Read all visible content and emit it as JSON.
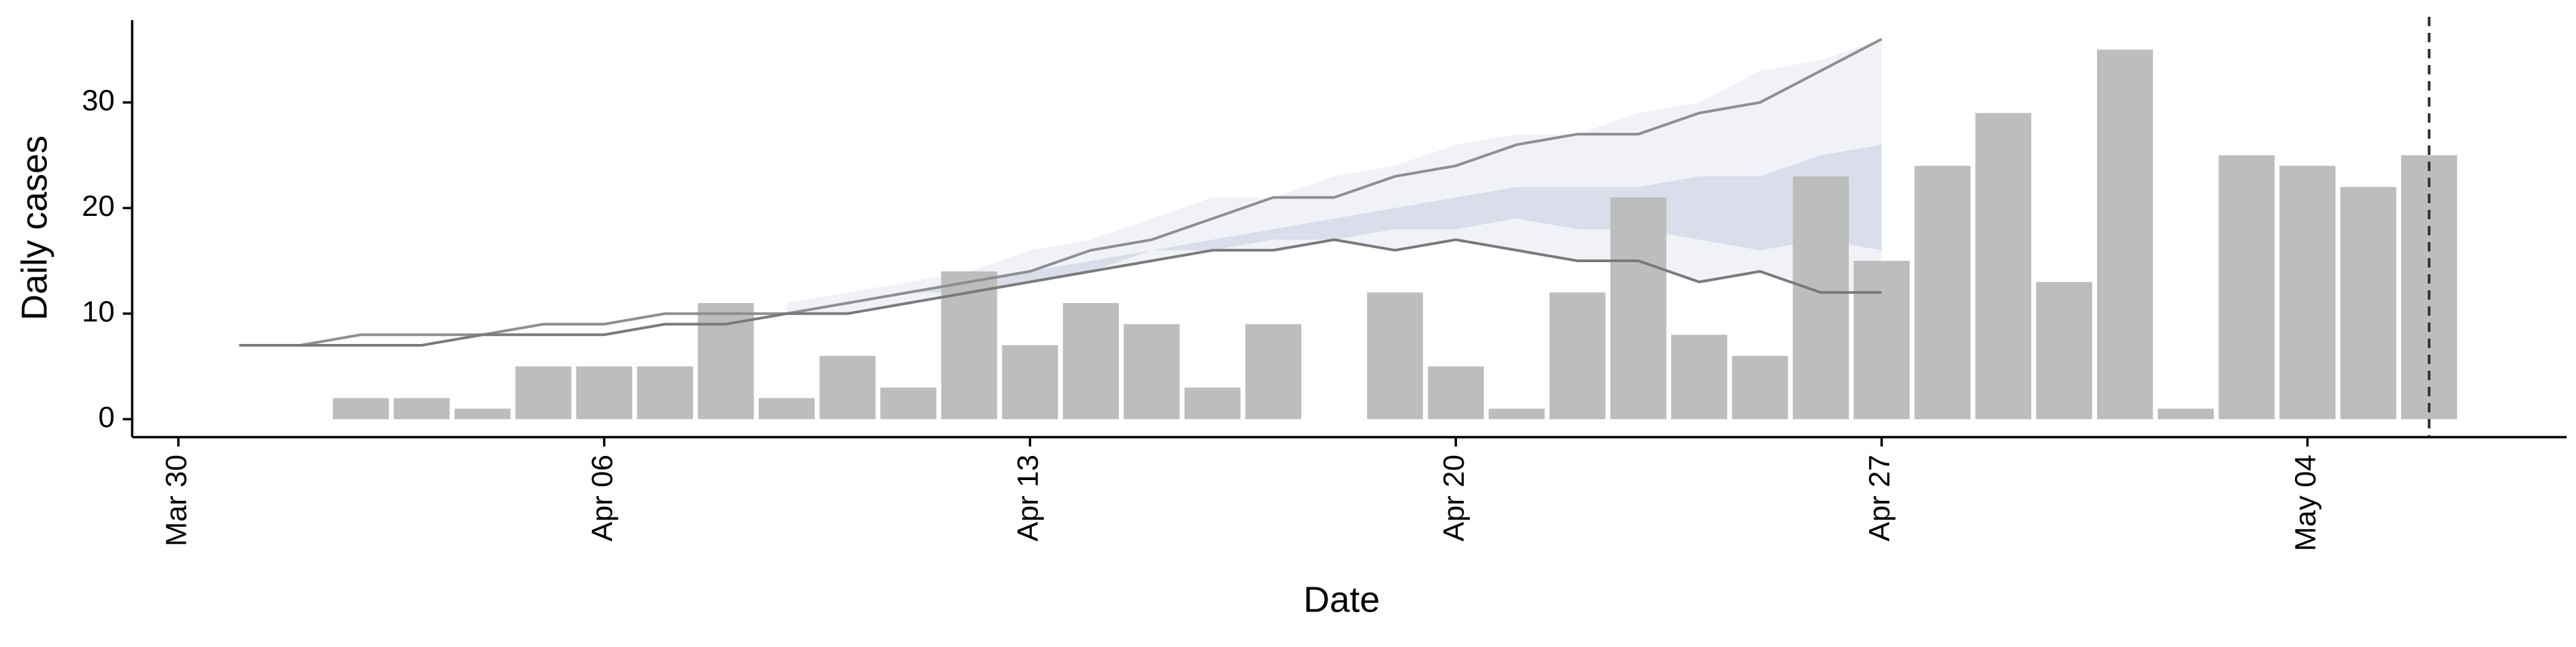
{
  "chart_data": {
    "type": "bar",
    "xlabel": "Date",
    "ylabel": "Daily cases",
    "xlim": [
      -0.76,
      39.26
    ],
    "ylim": [
      -1.7,
      37.8
    ],
    "xticks": [
      {
        "value": 0,
        "label": "Mar 30"
      },
      {
        "value": 7,
        "label": "Apr 06"
      },
      {
        "value": 14,
        "label": "Apr 13"
      },
      {
        "value": 21,
        "label": "Apr 20"
      },
      {
        "value": 28,
        "label": "Apr 27"
      },
      {
        "value": 35,
        "label": "May 04"
      }
    ],
    "yticks": [
      0,
      10,
      20,
      30
    ],
    "color": "#bdbdbd",
    "x": [
      3,
      4,
      5,
      6,
      7,
      8,
      9,
      10,
      11,
      12,
      13,
      14,
      15,
      16,
      17,
      18,
      19,
      20,
      21,
      22,
      23,
      24,
      25,
      26,
      27,
      28,
      29,
      30,
      31,
      32,
      33,
      34,
      35,
      36,
      37
    ],
    "values": [
      2,
      2,
      1,
      5,
      5,
      5,
      11,
      2,
      6,
      3,
      14,
      7,
      11,
      9,
      3,
      9,
      0,
      12,
      5,
      1,
      12,
      21,
      8,
      6,
      23,
      15,
      24,
      29,
      13,
      35,
      1,
      25,
      24,
      22,
      25
    ],
    "bands": [
      {
        "color": "#eceef4",
        "x": [
          10,
          11,
          12,
          13,
          14,
          15,
          16,
          17,
          18,
          19,
          20,
          21,
          22,
          23,
          24,
          25,
          26,
          27,
          28
        ],
        "lower": [
          10,
          10,
          11,
          12,
          13,
          14,
          15,
          16,
          16,
          17,
          16,
          17,
          16,
          15,
          15,
          13,
          14,
          12,
          12
        ],
        "upper": [
          11,
          12,
          13,
          14,
          16,
          17,
          19,
          21,
          21,
          23,
          24,
          26,
          27,
          27,
          29,
          30,
          33,
          34,
          36
        ]
      },
      {
        "color": "#d2d7e6",
        "x": [
          10,
          11,
          12,
          13,
          14,
          15,
          16,
          17,
          18,
          19,
          20,
          21,
          22,
          23,
          24,
          25,
          26,
          27,
          28
        ],
        "lower": [
          10,
          11,
          12,
          12,
          13,
          14,
          16,
          16,
          17,
          17,
          18,
          18,
          19,
          18,
          18,
          17,
          16,
          17,
          16
        ],
        "upper": [
          10,
          11,
          12,
          13,
          14,
          15,
          16,
          17,
          18,
          19,
          20,
          21,
          22,
          22,
          22,
          23,
          23,
          25,
          26
        ]
      }
    ],
    "lines": [
      {
        "color": "#8f8f8f",
        "x": [
          1,
          2,
          3,
          4,
          5,
          6,
          7,
          8,
          9,
          10,
          11,
          12,
          13,
          14,
          15,
          16,
          17,
          18,
          19,
          20,
          21,
          22,
          23,
          24,
          25,
          26,
          27,
          28
        ],
        "values": [
          7,
          7,
          8,
          8,
          8,
          9,
          9,
          10,
          10,
          10,
          11,
          12,
          13,
          14,
          16,
          17,
          19,
          21,
          21,
          23,
          24,
          26,
          27,
          27,
          29,
          30,
          33,
          36
        ]
      },
      {
        "color": "#7a7a7a",
        "x": [
          1,
          2,
          3,
          4,
          5,
          6,
          7,
          8,
          9,
          10,
          11,
          12,
          13,
          14,
          15,
          16,
          17,
          18,
          19,
          20,
          21,
          22,
          23,
          24,
          25,
          26,
          27,
          28
        ],
        "values": [
          7,
          7,
          7,
          7,
          8,
          8,
          8,
          9,
          9,
          10,
          10,
          11,
          12,
          13,
          14,
          15,
          16,
          16,
          17,
          16,
          17,
          16,
          15,
          15,
          13,
          14,
          12,
          12
        ]
      }
    ],
    "vline": {
      "x": 37,
      "style": "dashed",
      "color": "#333333"
    }
  }
}
